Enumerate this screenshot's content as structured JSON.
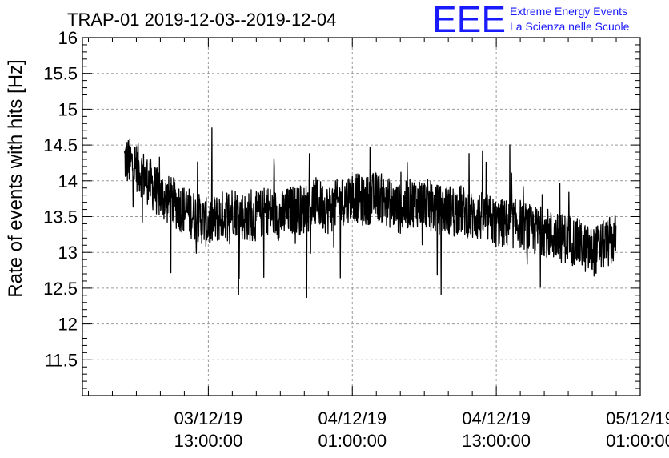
{
  "chart_data": {
    "type": "line",
    "title": "TRAP-01 2019-12-03--2019-12-04",
    "xlabel": "",
    "ylabel": "Rate of events with hits [Hz]",
    "x_range": [
      "2019-12-03T02:30:00",
      "2019-12-05T01:00:00"
    ],
    "ylim": [
      11.0,
      16.0
    ],
    "y_ticks": [
      "11.5",
      "12",
      "12.5",
      "13",
      "13.5",
      "14",
      "14.5",
      "15",
      "15.5",
      "16"
    ],
    "x_ticks": [
      {
        "date": "03/12/19",
        "time": "13:00:00"
      },
      {
        "date": "04/12/19",
        "time": "01:00:00"
      },
      {
        "date": "04/12/19",
        "time": "13:00:00"
      },
      {
        "date": "05/12/19",
        "time": "01:00:00"
      }
    ],
    "grid": true,
    "series": [
      {
        "color": "#000000",
        "x": [
          "2019-12-03T06:00",
          "2019-12-03T07:00",
          "2019-12-03T08:00",
          "2019-12-03T09:00",
          "2019-12-03T10:00",
          "2019-12-03T11:00",
          "2019-12-03T12:00",
          "2019-12-03T13:00",
          "2019-12-03T14:00",
          "2019-12-03T15:00",
          "2019-12-03T16:00",
          "2019-12-03T17:00",
          "2019-12-03T18:00",
          "2019-12-03T19:00",
          "2019-12-03T20:00",
          "2019-12-03T21:00",
          "2019-12-03T22:00",
          "2019-12-03T23:00",
          "2019-12-04T00:00",
          "2019-12-04T01:00",
          "2019-12-04T02:00",
          "2019-12-04T03:00",
          "2019-12-04T04:00",
          "2019-12-04T05:00",
          "2019-12-04T06:00",
          "2019-12-04T07:00",
          "2019-12-04T08:00",
          "2019-12-04T09:00",
          "2019-12-04T10:00",
          "2019-12-04T11:00",
          "2019-12-04T12:00",
          "2019-12-04T13:00",
          "2019-12-04T14:00",
          "2019-12-04T15:00",
          "2019-12-04T16:00",
          "2019-12-04T17:00",
          "2019-12-04T18:00",
          "2019-12-04T19:00",
          "2019-12-04T20:00",
          "2019-12-04T21:00",
          "2019-12-04T22:00",
          "2019-12-04T23:00"
        ],
        "y": [
          14.3,
          14.2,
          14.0,
          13.8,
          13.7,
          13.6,
          13.5,
          13.4,
          13.5,
          13.6,
          13.5,
          13.5,
          13.6,
          13.5,
          13.6,
          13.6,
          13.7,
          13.6,
          13.7,
          13.8,
          13.7,
          13.8,
          13.7,
          13.6,
          13.7,
          13.7,
          13.6,
          13.6,
          13.6,
          13.5,
          13.5,
          13.4,
          13.4,
          13.4,
          13.3,
          13.3,
          13.2,
          13.2,
          13.1,
          13.0,
          13.1,
          13.2
        ],
        "noise_amplitude": 0.35
      }
    ]
  },
  "logo": {
    "letters": "EEE",
    "line1": "Extreme Energy Events",
    "line2": "La Scienza nelle Scuole"
  }
}
